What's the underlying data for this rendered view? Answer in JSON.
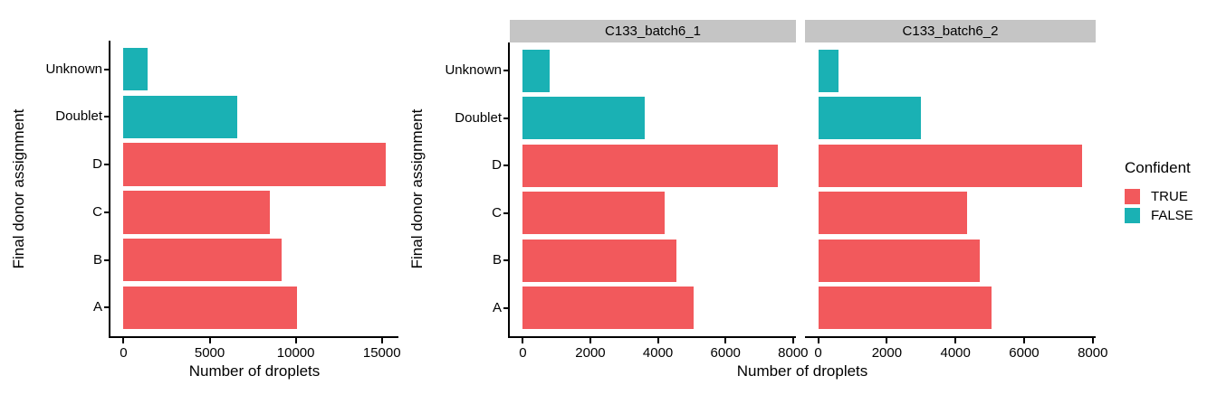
{
  "chart_data": {
    "type": "bar",
    "orientation": "horizontal",
    "title": "",
    "xlabel": "Number of droplets",
    "ylabel": "Final donor assignment",
    "categories_top_to_bottom": [
      "Unknown",
      "Doublet",
      "D",
      "C",
      "B",
      "A"
    ],
    "color_mapped_variable": "Confident",
    "confident_by_category": [
      false,
      false,
      true,
      true,
      true,
      true
    ],
    "legend": {
      "title": "Confident",
      "position": "right",
      "items": [
        {
          "label": "TRUE",
          "color": "#F2595C"
        },
        {
          "label": "FALSE",
          "color": "#1AB1B4"
        }
      ]
    },
    "panels": [
      {
        "facet_label": null,
        "values": [
          1400,
          6600,
          15200,
          8500,
          9200,
          10050
        ],
        "xticks": [
          0,
          5000,
          10000,
          15000
        ],
        "xlim_displayed": [
          0,
          15960
        ]
      },
      {
        "facet_label": "C133_batch6_1",
        "values": [
          800,
          3600,
          7550,
          4200,
          4550,
          5050
        ],
        "xticks": [
          0,
          2000,
          4000,
          6000,
          8000
        ],
        "xlim_displayed": [
          0,
          8085
        ]
      },
      {
        "facet_label": "C133_batch6_2",
        "values": [
          600,
          3000,
          7700,
          4350,
          4700,
          5050
        ],
        "xticks": [
          0,
          2000,
          4000,
          6000,
          8000
        ],
        "xlim_displayed": [
          0,
          8085
        ]
      }
    ],
    "grid": false,
    "styles": {
      "strip_background": "#C5C5C5",
      "axis_color": "#000000",
      "text_color": "#000000",
      "plot_background": "#FFFFFF"
    }
  }
}
